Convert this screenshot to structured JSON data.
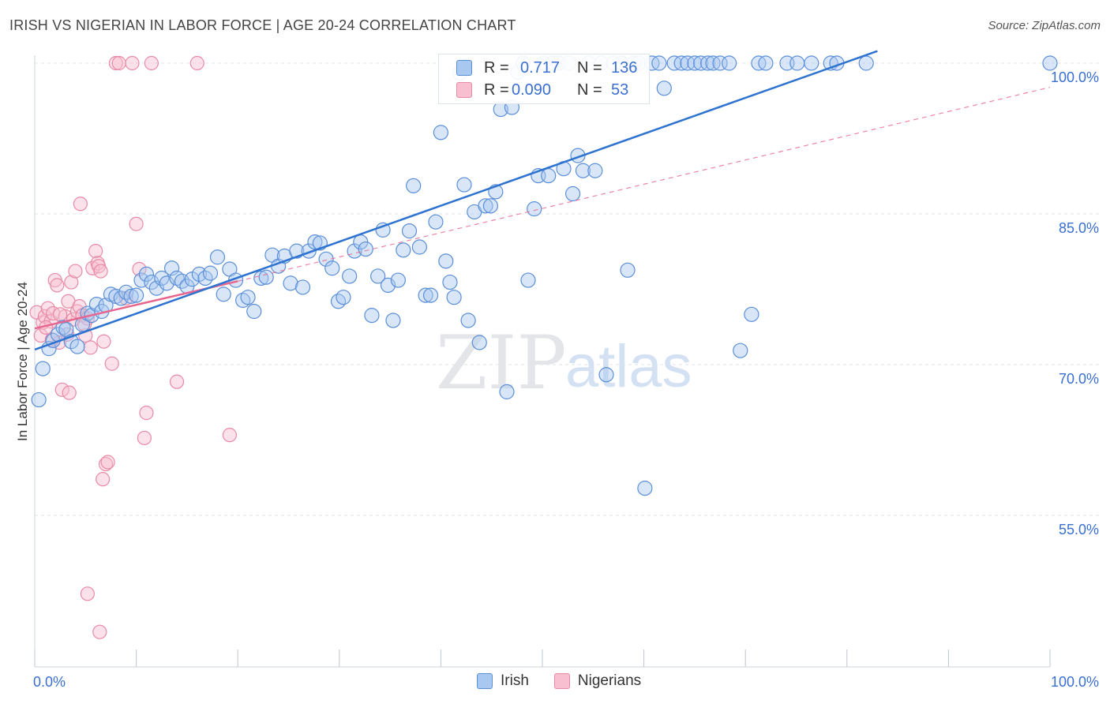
{
  "header": {
    "title": "IRISH VS NIGERIAN IN LABOR FORCE | AGE 20-24 CORRELATION CHART",
    "source": "Source: ZipAtlas.com"
  },
  "watermark": {
    "zip": "ZIP",
    "atlas": "atlas"
  },
  "stats": {
    "r_label": "R =",
    "n_label": "N =",
    "irish": {
      "r": "0.717",
      "n": "136"
    },
    "nigerians": {
      "r": "0.090",
      "n": "53"
    }
  },
  "legend": {
    "irish": "Irish",
    "nigerians": "Nigerians"
  },
  "colors": {
    "irish_fill": "#a9c8ef",
    "irish_stroke": "#5b8fd8",
    "irish_line": "#2f73d0",
    "nigerians_fill": "#f7bfd0",
    "nigerians_stroke": "#e88aa6",
    "nigerians_line": "#e8668e",
    "axis_label": "#3a6fd0",
    "grid": "#dfe3e8"
  },
  "chart_data": {
    "type": "scatter",
    "title": "IRISH VS NIGERIAN IN LABOR FORCE | AGE 20-24 CORRELATION CHART",
    "xlabel": "",
    "ylabel": "In Labor Force | Age 20-24",
    "xlim": [
      0,
      100
    ],
    "ylim": [
      40,
      102
    ],
    "x_tick_labels": [
      "0.0%",
      "100.0%"
    ],
    "y_ticks": [
      55,
      70,
      85,
      100
    ],
    "y_tick_labels": [
      "55.0%",
      "70.0%",
      "85.0%",
      "100.0%"
    ],
    "grid": true,
    "series": [
      {
        "name": "Irish",
        "r": 0.717,
        "n": 136,
        "trend": {
          "x": [
            0,
            83
          ],
          "y": [
            71.5,
            101.2
          ]
        },
        "points": [
          [
            0.4,
            66.5
          ],
          [
            0.8,
            69.6
          ],
          [
            1.4,
            71.6
          ],
          [
            1.8,
            72.4
          ],
          [
            2.3,
            73.0
          ],
          [
            2.8,
            73.7
          ],
          [
            3.1,
            73.5
          ],
          [
            3.6,
            72.3
          ],
          [
            4.2,
            71.8
          ],
          [
            4.7,
            74.0
          ],
          [
            5.2,
            75.1
          ],
          [
            5.6,
            74.9
          ],
          [
            6.1,
            76.0
          ],
          [
            6.6,
            75.3
          ],
          [
            7.0,
            75.9
          ],
          [
            7.5,
            77.0
          ],
          [
            8.0,
            76.8
          ],
          [
            8.5,
            76.6
          ],
          [
            9.0,
            77.2
          ],
          [
            9.5,
            76.8
          ],
          [
            10.0,
            76.9
          ],
          [
            10.5,
            78.4
          ],
          [
            11.0,
            79.0
          ],
          [
            11.5,
            78.2
          ],
          [
            12.0,
            77.6
          ],
          [
            12.5,
            78.6
          ],
          [
            13.0,
            78.1
          ],
          [
            13.5,
            79.6
          ],
          [
            14.0,
            78.6
          ],
          [
            14.5,
            78.3
          ],
          [
            15.0,
            77.8
          ],
          [
            15.5,
            78.5
          ],
          [
            16.2,
            79.0
          ],
          [
            16.8,
            78.6
          ],
          [
            17.3,
            79.1
          ],
          [
            18.0,
            80.7
          ],
          [
            18.6,
            77.0
          ],
          [
            19.2,
            79.5
          ],
          [
            19.8,
            78.4
          ],
          [
            20.5,
            76.4
          ],
          [
            21.0,
            76.7
          ],
          [
            21.6,
            75.3
          ],
          [
            22.3,
            78.6
          ],
          [
            22.8,
            78.7
          ],
          [
            23.4,
            80.9
          ],
          [
            24.0,
            79.8
          ],
          [
            24.6,
            80.8
          ],
          [
            25.2,
            78.1
          ],
          [
            25.8,
            81.3
          ],
          [
            26.4,
            77.7
          ],
          [
            27.0,
            81.3
          ],
          [
            27.6,
            82.2
          ],
          [
            28.1,
            82.1
          ],
          [
            28.7,
            80.5
          ],
          [
            29.3,
            79.6
          ],
          [
            29.9,
            76.3
          ],
          [
            30.4,
            76.7
          ],
          [
            31.0,
            78.8
          ],
          [
            31.5,
            81.3
          ],
          [
            32.1,
            82.2
          ],
          [
            32.6,
            81.5
          ],
          [
            33.2,
            74.9
          ],
          [
            33.8,
            78.8
          ],
          [
            34.3,
            83.4
          ],
          [
            34.8,
            77.9
          ],
          [
            35.3,
            74.4
          ],
          [
            35.8,
            78.4
          ],
          [
            36.3,
            81.4
          ],
          [
            36.9,
            83.3
          ],
          [
            37.3,
            87.8
          ],
          [
            37.9,
            81.7
          ],
          [
            38.5,
            76.9
          ],
          [
            39.0,
            76.9
          ],
          [
            39.5,
            84.2
          ],
          [
            40.0,
            93.1
          ],
          [
            40.5,
            80.3
          ],
          [
            40.9,
            78.2
          ],
          [
            41.3,
            76.7
          ],
          [
            41.9,
            99.0
          ],
          [
            42.3,
            87.9
          ],
          [
            42.7,
            74.4
          ],
          [
            43.3,
            85.2
          ],
          [
            43.8,
            72.2
          ],
          [
            44.4,
            85.8
          ],
          [
            44.9,
            85.8
          ],
          [
            45.4,
            87.2
          ],
          [
            45.9,
            95.4
          ],
          [
            46.5,
            67.3
          ],
          [
            47.0,
            95.6
          ],
          [
            47.6,
            99.1
          ],
          [
            48.1,
            100.0
          ],
          [
            48.6,
            78.4
          ],
          [
            49.2,
            85.5
          ],
          [
            49.6,
            88.8
          ],
          [
            50.1,
            100.0
          ],
          [
            50.6,
            88.8
          ],
          [
            51.0,
            100.0
          ],
          [
            51.6,
            100.0
          ],
          [
            52.1,
            89.5
          ],
          [
            52.6,
            100.0
          ],
          [
            53.0,
            87.0
          ],
          [
            53.5,
            90.8
          ],
          [
            54.0,
            89.3
          ],
          [
            54.6,
            100.0
          ],
          [
            55.2,
            89.3
          ],
          [
            55.8,
            100.0
          ],
          [
            56.3,
            69.0
          ],
          [
            57.0,
            100.0
          ],
          [
            57.8,
            100.0
          ],
          [
            58.4,
            79.4
          ],
          [
            59.0,
            100.0
          ],
          [
            59.5,
            100.0
          ],
          [
            60.1,
            57.7
          ],
          [
            60.8,
            100.0
          ],
          [
            61.5,
            100.0
          ],
          [
            62.0,
            97.5
          ],
          [
            63.0,
            100.0
          ],
          [
            63.7,
            100.0
          ],
          [
            64.3,
            100.0
          ],
          [
            65.0,
            100.0
          ],
          [
            65.6,
            100.0
          ],
          [
            66.3,
            100.0
          ],
          [
            66.8,
            100.0
          ],
          [
            67.5,
            100.0
          ],
          [
            68.4,
            100.0
          ],
          [
            69.5,
            71.4
          ],
          [
            70.6,
            75.0
          ],
          [
            71.3,
            100.0
          ],
          [
            72.0,
            100.0
          ],
          [
            74.1,
            100.0
          ],
          [
            75.1,
            100.0
          ],
          [
            76.5,
            100.0
          ],
          [
            78.4,
            100.0
          ],
          [
            79.0,
            100.0
          ],
          [
            81.9,
            100.0
          ],
          [
            100.0,
            100.0
          ]
        ]
      },
      {
        "name": "Nigerians",
        "r": 0.09,
        "n": 53,
        "trend": {
          "x": [
            0,
            20
          ],
          "y": [
            73.6,
            78.3
          ],
          "extended": {
            "x": [
              20,
              100
            ],
            "y": [
              78.3,
              97.6
            ]
          }
        },
        "points": [
          [
            0.2,
            75.2
          ],
          [
            0.6,
            72.9
          ],
          [
            0.8,
            74.2
          ],
          [
            1.0,
            74.8
          ],
          [
            1.3,
            75.6
          ],
          [
            1.6,
            74.3
          ],
          [
            1.8,
            75.1
          ],
          [
            2.0,
            78.4
          ],
          [
            2.2,
            77.9
          ],
          [
            2.4,
            72.2
          ],
          [
            2.7,
            67.5
          ],
          [
            3.0,
            74.8
          ],
          [
            3.3,
            76.3
          ],
          [
            3.4,
            67.2
          ],
          [
            3.6,
            78.2
          ],
          [
            3.8,
            74.5
          ],
          [
            4.0,
            79.3
          ],
          [
            4.2,
            75.3
          ],
          [
            4.4,
            75.8
          ],
          [
            4.5,
            86.0
          ],
          [
            4.7,
            74.9
          ],
          [
            5.0,
            72.9
          ],
          [
            5.2,
            74.6
          ],
          [
            5.5,
            71.7
          ],
          [
            5.7,
            79.6
          ],
          [
            6.0,
            81.3
          ],
          [
            6.2,
            80.1
          ],
          [
            6.3,
            79.8
          ],
          [
            6.5,
            79.3
          ],
          [
            6.8,
            72.3
          ],
          [
            7.0,
            60.1
          ],
          [
            7.2,
            60.3
          ],
          [
            7.6,
            70.1
          ],
          [
            8.0,
            100.0
          ],
          [
            8.3,
            100.0
          ],
          [
            9.0,
            76.6
          ],
          [
            9.6,
            100.0
          ],
          [
            10.0,
            84.0
          ],
          [
            10.3,
            79.5
          ],
          [
            10.8,
            62.7
          ],
          [
            11.0,
            65.2
          ],
          [
            11.5,
            100.0
          ],
          [
            14.0,
            68.3
          ],
          [
            16.0,
            100.0
          ],
          [
            19.2,
            63.0
          ],
          [
            6.7,
            58.6
          ],
          [
            5.2,
            47.2
          ],
          [
            6.4,
            43.4
          ],
          [
            1.1,
            73.7
          ],
          [
            2.5,
            75.0
          ],
          [
            3.2,
            73.0
          ],
          [
            4.9,
            74.0
          ],
          [
            1.7,
            72.5
          ]
        ]
      }
    ]
  }
}
